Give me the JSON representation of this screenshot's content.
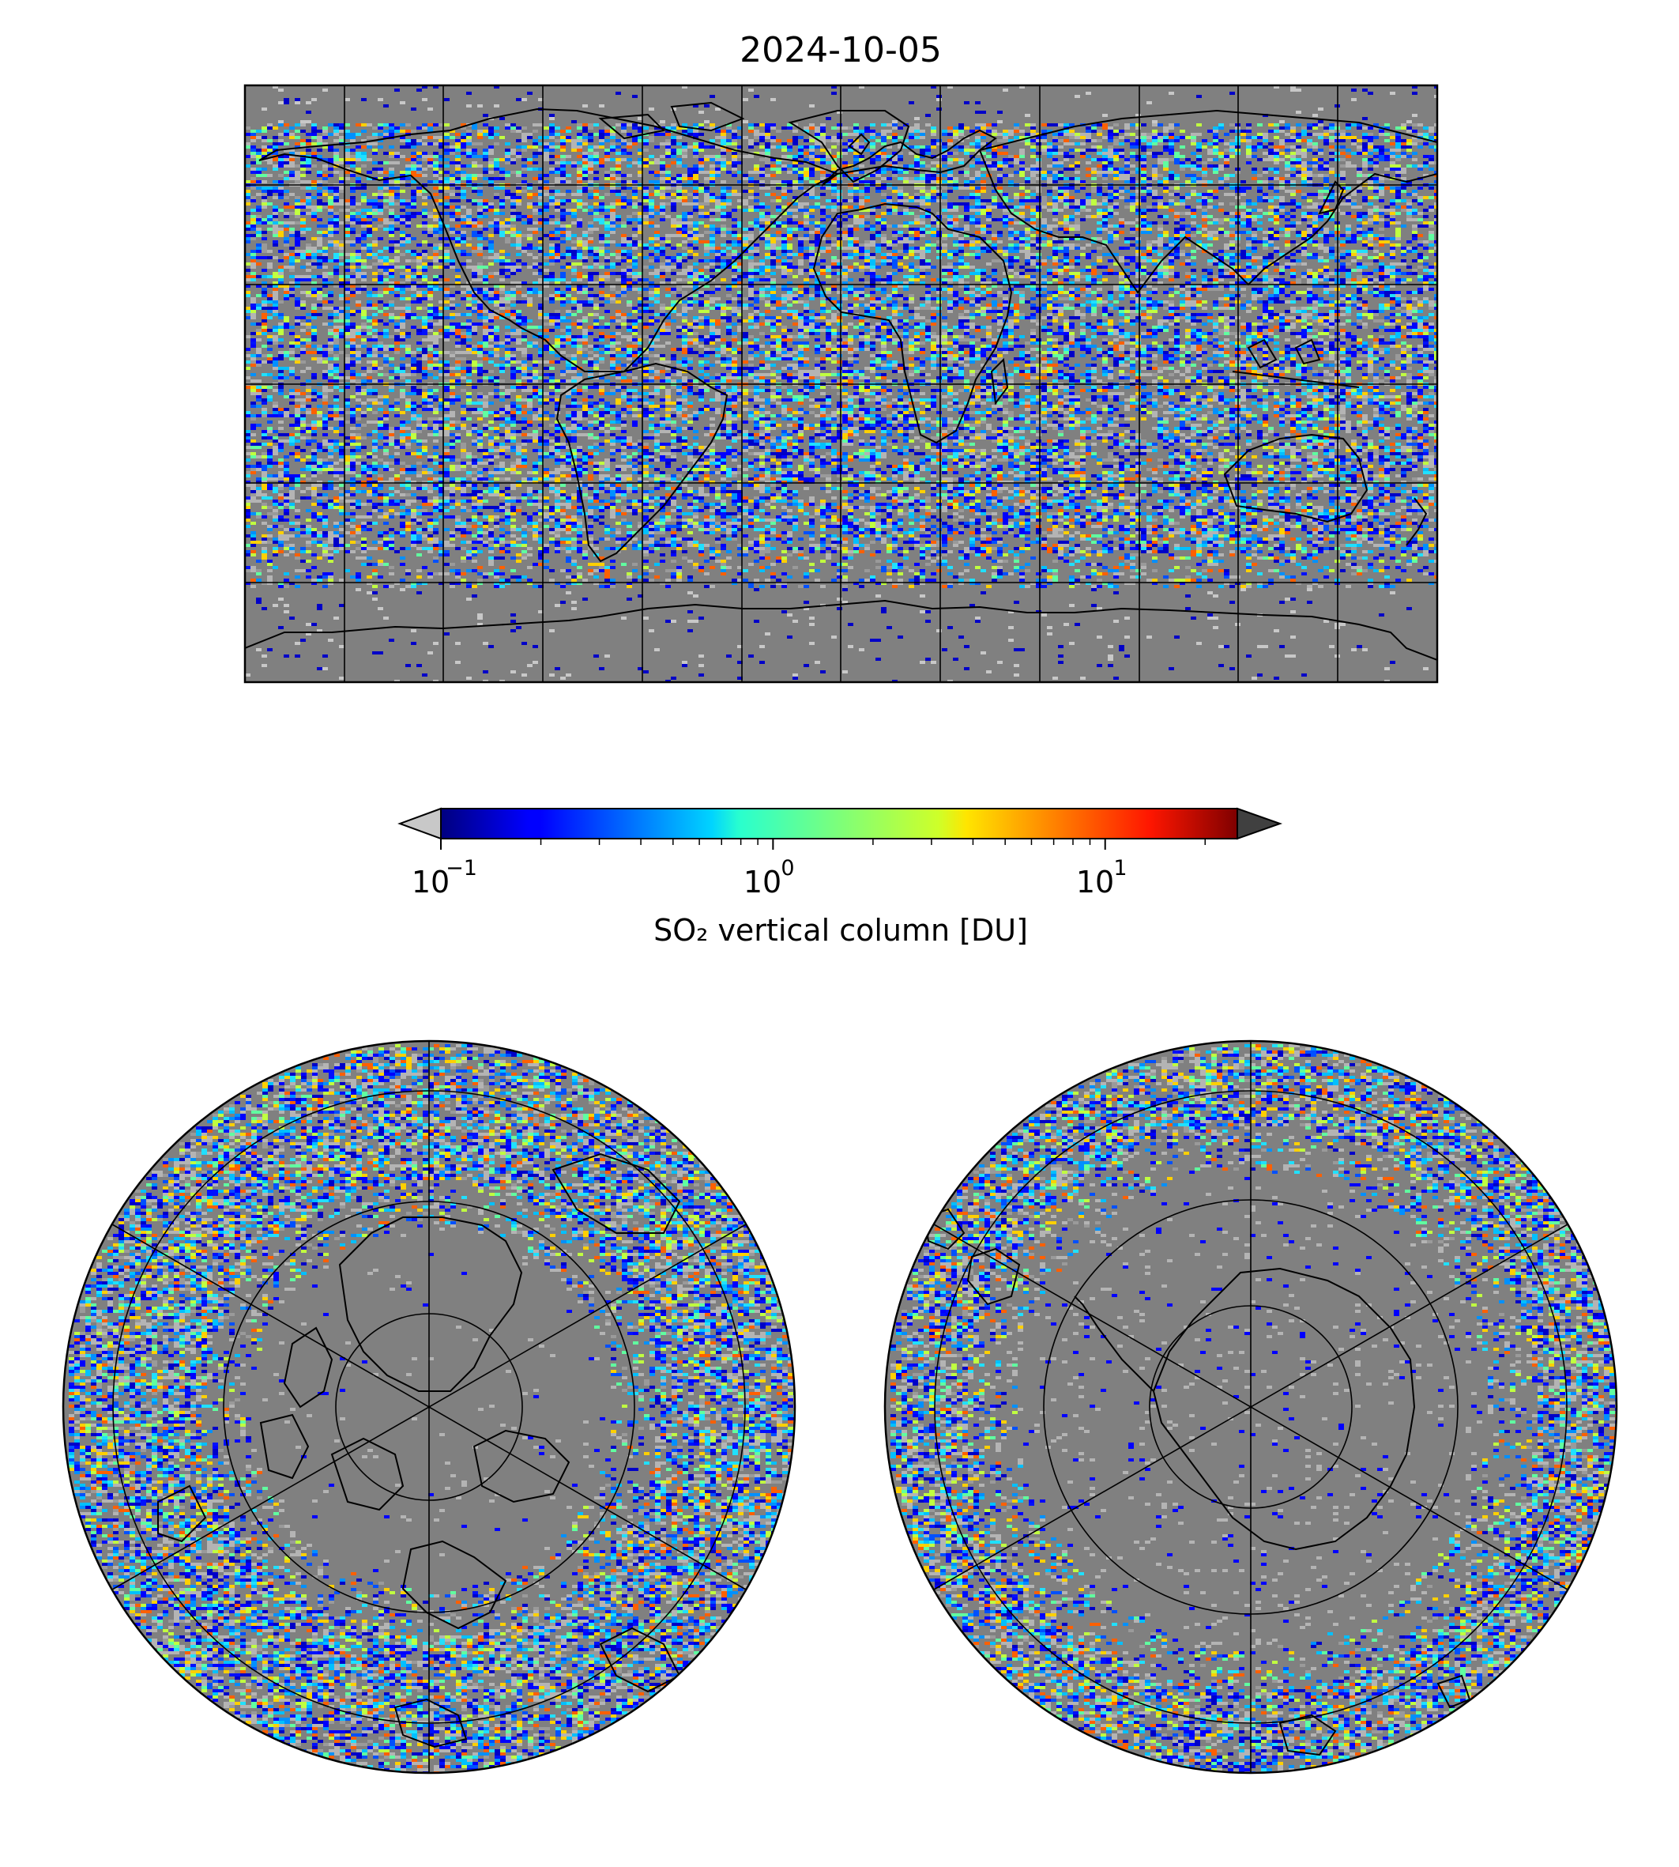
{
  "title": "2024-10-05",
  "colorbar": {
    "label": "SO₂ vertical column [DU]",
    "scale": "log",
    "range": [
      0.1,
      25
    ],
    "colormap": "jet",
    "under_color": "#c8c8c8",
    "over_color": "#404040",
    "ticks": [
      {
        "base": "10",
        "exp": "−1",
        "value": 0.1
      },
      {
        "base": "10",
        "exp": "0",
        "value": 1
      },
      {
        "base": "10",
        "exp": "1",
        "value": 10
      }
    ]
  },
  "maps": [
    {
      "name": "global",
      "projection": "plate-carree",
      "background": "#808080",
      "gridlines": true
    },
    {
      "name": "north-polar",
      "projection": "north-polar-stereographic",
      "background": "#808080",
      "gridlines": true
    },
    {
      "name": "south-polar",
      "projection": "south-polar-stereographic",
      "background": "#808080",
      "gridlines": true
    }
  ],
  "colors": {
    "no_data": "#808080",
    "coastline": "#000000",
    "grid": "#000000"
  }
}
